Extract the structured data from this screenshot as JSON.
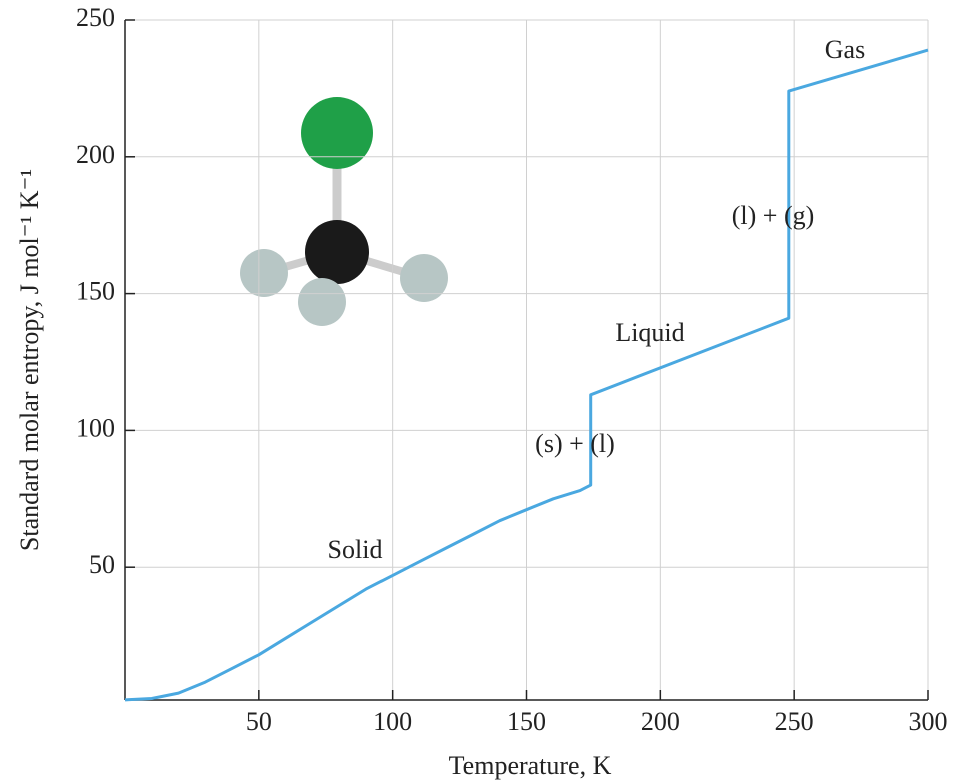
{
  "chart_data": {
    "type": "line",
    "x_label": "Temperature, K",
    "y_label": "Standard molar entropy, J mol⁻¹ K⁻¹",
    "x": [
      0,
      10,
      20,
      30,
      40,
      50,
      60,
      70,
      80,
      90,
      100,
      110,
      120,
      130,
      140,
      150,
      160,
      170,
      174,
      174,
      248,
      248,
      300
    ],
    "values": [
      1.5,
      2,
      4,
      8,
      13,
      18,
      24,
      30,
      36,
      42,
      47,
      52,
      57,
      62,
      67,
      71,
      75,
      78,
      80,
      113,
      141,
      224,
      239
    ],
    "color": "#4aa8e0",
    "xlim": [
      0,
      300
    ],
    "xticks": [
      50,
      100,
      150,
      200,
      250,
      300
    ],
    "ylim": [
      0,
      250
    ],
    "yticks": [
      50,
      100,
      150,
      200,
      250
    ],
    "grid": true,
    "annotations": [
      "Solid",
      "(s) + (l)",
      "Liquid",
      "(l) + (g)",
      "Gas"
    ]
  }
}
